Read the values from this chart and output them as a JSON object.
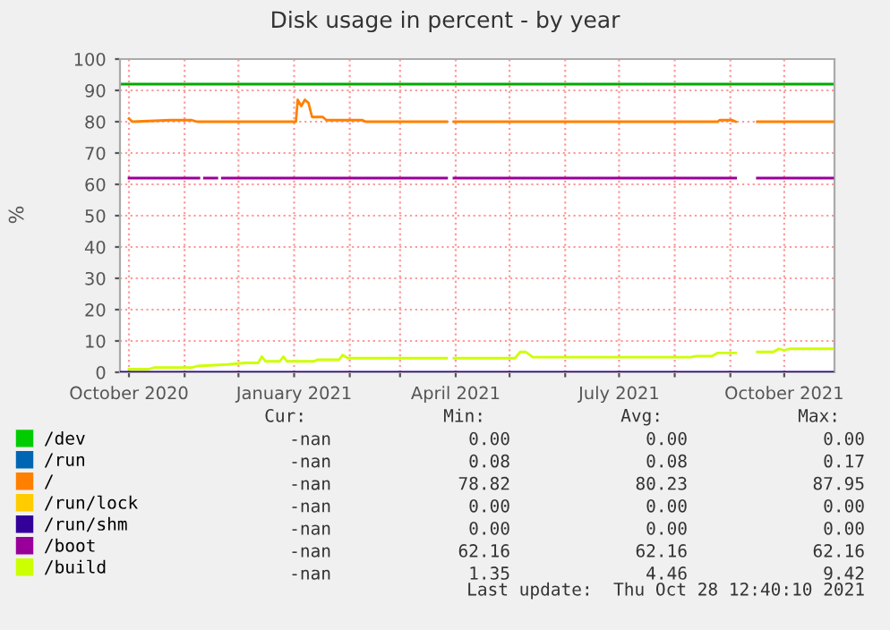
{
  "chart_data": {
    "type": "line",
    "title": "Disk usage in percent - by year",
    "ylabel": "%",
    "xlim": [
      "2020-09-26",
      "2021-10-29"
    ],
    "ylim": [
      0,
      100
    ],
    "yticks": [
      0,
      10,
      20,
      30,
      40,
      50,
      60,
      70,
      80,
      90,
      100
    ],
    "xticks": [
      {
        "value": "2020-10-01",
        "label": "October 2020"
      },
      {
        "value": "2020-11-01",
        "label": null
      },
      {
        "value": "2020-12-01",
        "label": null
      },
      {
        "value": "2021-01-01",
        "label": "January 2021"
      },
      {
        "value": "2021-02-01",
        "label": null
      },
      {
        "value": "2021-03-01",
        "label": null
      },
      {
        "value": "2021-04-01",
        "label": "April 2021"
      },
      {
        "value": "2021-05-01",
        "label": null
      },
      {
        "value": "2021-06-01",
        "label": null
      },
      {
        "value": "2021-07-01",
        "label": "July 2021"
      },
      {
        "value": "2021-08-01",
        "label": null
      },
      {
        "value": "2021-09-01",
        "label": null
      },
      {
        "value": "2021-10-01",
        "label": "October 2021"
      }
    ],
    "grid": true,
    "legend": "bottom left",
    "ref_lines": [
      {
        "axis": "y",
        "value": 92,
        "color": "#00aa00"
      }
    ],
    "series": [
      {
        "name": "/dev",
        "color": "#00cc00"
      },
      {
        "name": "/run",
        "color": "#0066b3"
      },
      {
        "name": "/",
        "color": "#ff8000",
        "x": [
          "2020-10-01",
          "2020-10-03",
          "2020-10-24",
          "2020-11-05",
          "2020-11-08",
          "2021-01-02",
          "2021-01-03",
          "2021-01-05",
          "2021-01-07",
          "2021-01-09",
          "2021-01-11",
          "2021-01-17",
          "2021-01-19",
          "2021-02-08",
          "2021-02-10",
          "2021-03-27",
          "2021-03-28",
          "2021-03-31",
          "2021-08-25",
          "2021-08-26",
          "2021-09-02",
          "2021-09-04",
          "2021-09-09",
          "2021-09-16",
          "2021-10-28"
        ],
        "values": [
          81,
          80,
          80.5,
          80.5,
          80,
          80,
          87,
          85,
          87,
          86,
          81.5,
          81.5,
          80.5,
          80.5,
          80,
          80,
          null,
          80,
          80,
          80.5,
          80.5,
          80,
          null,
          80,
          80
        ]
      },
      {
        "name": "/run/lock",
        "color": "#ffcc00"
      },
      {
        "name": "/run/shm",
        "color": "#330099",
        "x": [
          "2020-09-26",
          "2021-10-28"
        ],
        "values": [
          0,
          0
        ]
      },
      {
        "name": "/boot",
        "color": "#990099",
        "x": [
          "2020-10-01",
          "2020-11-09",
          "2020-11-10",
          "2020-11-12",
          "2020-11-19",
          "2020-11-20",
          "2020-11-22",
          "2021-03-27",
          "2021-03-28",
          "2021-03-31",
          "2021-09-04",
          "2021-09-09",
          "2021-09-16",
          "2021-10-28"
        ],
        "values": [
          62,
          62,
          null,
          62,
          62,
          null,
          62,
          62,
          null,
          62,
          62,
          null,
          62,
          62
        ]
      },
      {
        "name": "/build",
        "color": "#ccff00",
        "x": [
          "2020-10-01",
          "2020-10-12",
          "2020-10-15",
          "2020-11-05",
          "2020-11-08",
          "2020-11-25",
          "2020-12-05",
          "2020-12-12",
          "2020-12-14",
          "2020-12-16",
          "2020-12-24",
          "2020-12-26",
          "2020-12-28",
          "2021-01-12",
          "2021-01-14",
          "2021-01-26",
          "2021-01-28",
          "2021-01-31",
          "2021-03-27",
          "2021-03-28",
          "2021-03-31",
          "2021-05-04",
          "2021-05-07",
          "2021-05-10",
          "2021-05-14",
          "2021-08-10",
          "2021-08-13",
          "2021-08-22",
          "2021-08-25",
          "2021-09-04",
          "2021-09-09",
          "2021-09-16",
          "2021-09-25",
          "2021-09-28",
          "2021-10-01",
          "2021-10-04",
          "2021-10-28"
        ],
        "values": [
          1,
          1,
          1.5,
          1.5,
          2,
          2.5,
          3,
          3,
          5,
          3.5,
          3.5,
          5,
          3.5,
          3.5,
          4,
          4,
          5.5,
          4.5,
          4.5,
          null,
          4.5,
          4.5,
          6.5,
          6.5,
          4.8,
          4.8,
          5.2,
          5.2,
          6.2,
          6.2,
          null,
          6.5,
          6.5,
          7.5,
          7,
          7.5,
          7.5
        ]
      }
    ],
    "annotations": [
      "Cur:",
      "Min:",
      "Avg:",
      "Max:",
      "-nan",
      "0.00",
      "0.00",
      "0.00",
      "-nan",
      "0.08",
      "0.08",
      "0.17",
      "-nan",
      "78.82",
      "80.23",
      "87.95",
      "-nan",
      "0.00",
      "0.00",
      "0.00",
      "-nan",
      "0.00",
      "0.00",
      "0.00",
      "-nan",
      "62.16",
      "62.16",
      "62.16",
      "-nan",
      "1.35",
      "4.46",
      "9.42",
      "Last update:  Thu Oct 28 12:40:10 2021"
    ]
  }
}
